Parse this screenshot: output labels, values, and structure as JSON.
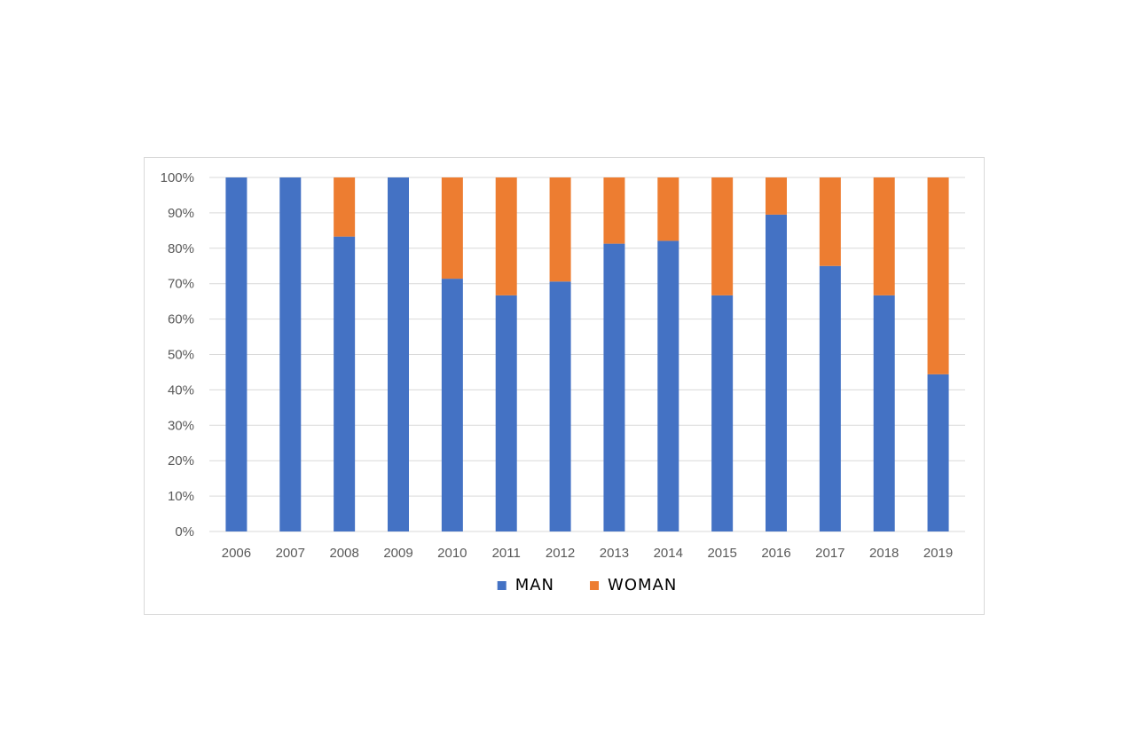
{
  "chart_data": {
    "type": "bar",
    "stacked": true,
    "percent": true,
    "categories": [
      "2006",
      "2007",
      "2008",
      "2009",
      "2010",
      "2011",
      "2012",
      "2013",
      "2014",
      "2015",
      "2016",
      "2017",
      "2018",
      "2019"
    ],
    "series": [
      {
        "name": "MAN",
        "color": "#4472c4",
        "values": [
          100,
          100,
          83.3,
          100,
          71.4,
          66.7,
          70.6,
          81.3,
          82.1,
          66.7,
          89.5,
          75.0,
          66.7,
          44.4
        ]
      },
      {
        "name": "WOMAN",
        "color": "#ed7d31",
        "values": [
          0,
          0,
          16.7,
          0,
          28.6,
          33.3,
          29.4,
          18.7,
          17.9,
          33.3,
          10.5,
          25.0,
          33.3,
          55.6
        ]
      }
    ],
    "y_ticks": [
      "0%",
      "10%",
      "20%",
      "30%",
      "40%",
      "50%",
      "60%",
      "70%",
      "80%",
      "90%",
      "100%"
    ],
    "ylim": [
      0,
      100
    ],
    "grid": true,
    "gridline_color": "#d9d9d9",
    "legend_position": "bottom",
    "title": "",
    "xlabel": "",
    "ylabel": ""
  }
}
